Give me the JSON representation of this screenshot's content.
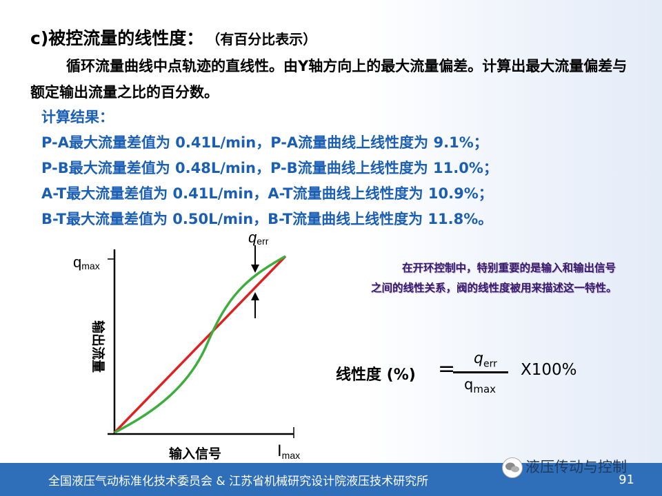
{
  "title": "c)被控流量的线性度：",
  "title_sub": "（有百分比表示）",
  "paragraph": "循环流量曲线中点轨迹的直线性。由Y轴方向上的最大流量偏差。计算出最大流量偏差与额定输出流量之比的百分数。",
  "results": {
    "heading": "计算结果：",
    "lines": [
      "P-A最大流量差值为 0.41L/min，P-A流量曲线上线性度为 9.1%；",
      "P-B最大流量差值为 0.48L/min，P-B流量曲线上线性度为 11.0%；",
      "A-T最大流量差值为 0.41L/min，A-T流量曲线上线性度为 10.9%；",
      "B-T最大流量差值为 0.50L/min，B-T流量曲线上线性度为 11.8%。"
    ]
  },
  "note": "在开环控制中，特别重要的是输入和输出信号之间的线性关系，阀的线性度被用来描述这一特性。",
  "formula": {
    "lhs": "线性度 (%)",
    "eq": "=",
    "numerator": "q",
    "numerator_sub": "err",
    "denominator": "q",
    "denominator_sub": "max",
    "multiplier": "X100%"
  },
  "chart": {
    "ylabel": "输出流量",
    "xlabel": "输入信号",
    "y_tick_main": "q",
    "y_tick_sub": "max",
    "x_tick_main": "I",
    "x_tick_sub": "max",
    "err_label_main": "q",
    "err_label_sub": "err",
    "colors": {
      "linear": "#e02020",
      "actual": "#3cae3c",
      "axis": "#000000"
    }
  },
  "footer": {
    "text": "全国液压气动标准化技术委员会 & 江苏省机械研究设计院液压技术研究所",
    "page": "91"
  },
  "wechat": {
    "name": "液压传动与控制"
  }
}
